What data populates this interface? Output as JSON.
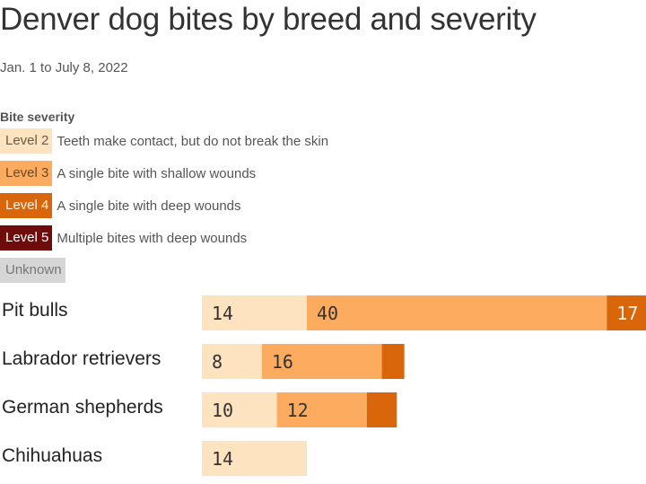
{
  "chart_data": {
    "type": "bar",
    "orientation": "horizontal",
    "stacked": true,
    "title": "Denver dog bites by breed and severity",
    "subtitle": "Jan. 1 to July 8, 2022",
    "legend": {
      "title": "Bite severity",
      "placement": "top-left",
      "entries": [
        {
          "key": "level2",
          "label": "Level 2",
          "description": "Teeth make contact, but do not break the skin",
          "color": "#fde3c0",
          "text_color": "#6b5a45"
        },
        {
          "key": "level3",
          "label": "Level 3",
          "description": "A single bite with shallow wounds",
          "color": "#fdab5e",
          "text_color": "#6b4a25"
        },
        {
          "key": "level4",
          "label": "Level 4",
          "description": "A single bite with deep wounds",
          "color": "#d9660a",
          "text_color": "#fff3e6"
        },
        {
          "key": "level5",
          "label": "Level 5",
          "description": "Multiple bites with deep wounds",
          "color": "#6e0b0b",
          "text_color": "#ffffff"
        },
        {
          "key": "unknown",
          "label": "Unknown",
          "description": "",
          "color": "#d6d6d6",
          "text_color": "#777777"
        }
      ]
    },
    "categories": [
      "Pit bulls",
      "Labrador retrievers",
      "German shepherds",
      "Chihuahuas"
    ],
    "series": [
      {
        "name": "Level 2",
        "values": [
          14,
          8,
          10,
          14
        ],
        "labels": [
          "14",
          "8",
          "10",
          "14"
        ]
      },
      {
        "name": "Level 3",
        "values": [
          40,
          16,
          12,
          0
        ],
        "labels": [
          "40",
          "16",
          "12",
          ""
        ]
      },
      {
        "name": "Level 4",
        "values": [
          17,
          3,
          4,
          0
        ],
        "labels": [
          "17",
          "",
          "",
          ""
        ]
      }
    ],
    "grid": false,
    "axis_visible": false
  }
}
